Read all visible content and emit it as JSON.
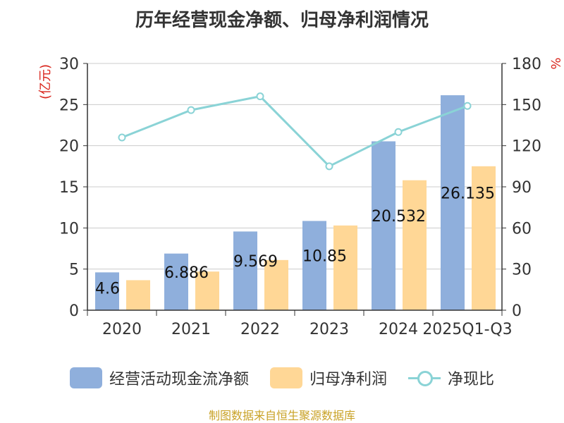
{
  "colors": {
    "bar_primary": "#8FAFDC",
    "bar_secondary": "#FFD796",
    "line": "#8AD3D6",
    "source": "#C9A227",
    "unit_red": "#D9251C"
  },
  "chart_data": {
    "type": "bar",
    "title": "历年经营现金净额、归母净利润情况",
    "categories": [
      "2020",
      "2021",
      "2022",
      "2023",
      "2024",
      "2025Q1-Q3"
    ],
    "ylabel": "(亿元)",
    "y2label": "%",
    "ylim": [
      0,
      30
    ],
    "y2lim": [
      0,
      180
    ],
    "yticks": [
      0,
      5,
      10,
      15,
      20,
      25,
      30
    ],
    "y2ticks": [
      0,
      30,
      60,
      90,
      120,
      150,
      180
    ],
    "grid": true,
    "legend_position": "bottom",
    "series": [
      {
        "name": "经营活动现金流净额",
        "type": "bar",
        "axis": "left",
        "values": [
          4.6,
          6.886,
          9.569,
          10.85,
          20.532,
          26.135
        ],
        "data_labels": [
          "4.6",
          "6.886",
          "9.569",
          "10.85",
          "20.532",
          "26.135"
        ]
      },
      {
        "name": "归母净利润",
        "type": "bar",
        "axis": "left",
        "values": [
          3.65,
          4.7,
          6.1,
          10.3,
          15.8,
          17.5
        ]
      },
      {
        "name": "净现比",
        "type": "line",
        "axis": "right",
        "values": [
          126,
          146,
          156,
          105,
          130,
          149
        ]
      }
    ]
  },
  "footer": {
    "source": "制图数据来自恒生聚源数据库"
  }
}
